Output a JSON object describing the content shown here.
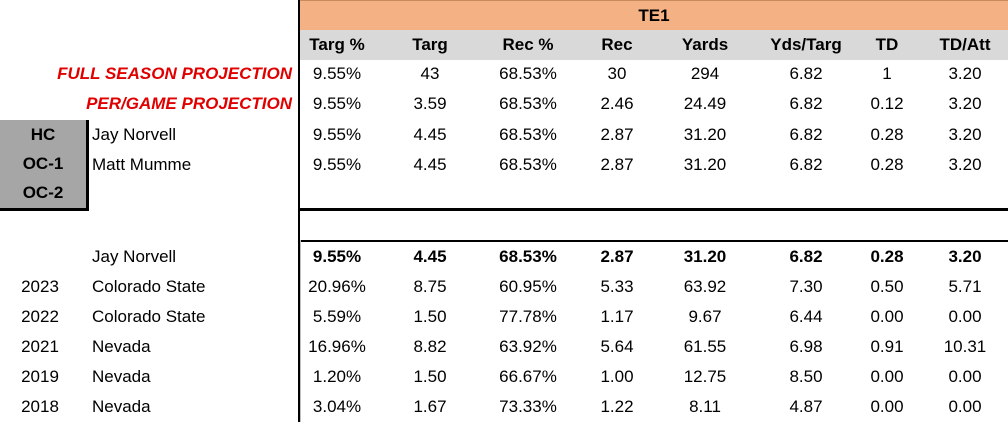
{
  "header": {
    "group_title": "TE1"
  },
  "columns": [
    "Targ %",
    "Targ",
    "Rec %",
    "Rec",
    "Yards",
    "Yds/Targ",
    "TD",
    "TD/Att"
  ],
  "projections": [
    {
      "label": "FULL SEASON PROJECTION",
      "values": [
        "9.55%",
        "43",
        "68.53%",
        "30",
        "294",
        "6.82",
        "1",
        "3.20"
      ]
    },
    {
      "label": "PER/GAME PROJECTION",
      "values": [
        "9.55%",
        "3.59",
        "68.53%",
        "2.46",
        "24.49",
        "6.82",
        "0.12",
        "3.20"
      ]
    }
  ],
  "coaches": {
    "tags": [
      "HC",
      "OC-1",
      "OC-2"
    ],
    "rows": [
      {
        "name": "Jay Norvell",
        "values": [
          "9.55%",
          "4.45",
          "68.53%",
          "2.87",
          "31.20",
          "6.82",
          "0.28",
          "3.20"
        ]
      },
      {
        "name": "Matt Mumme",
        "values": [
          "9.55%",
          "4.45",
          "68.53%",
          "2.87",
          "31.20",
          "6.82",
          "0.28",
          "3.20"
        ]
      }
    ]
  },
  "history": {
    "summary": {
      "name": "Jay Norvell",
      "values": [
        "9.55%",
        "4.45",
        "68.53%",
        "2.87",
        "31.20",
        "6.82",
        "0.28",
        "3.20"
      ]
    },
    "rows": [
      {
        "year": "2023",
        "school": "Colorado State",
        "values": [
          "20.96%",
          "8.75",
          "60.95%",
          "5.33",
          "63.92",
          "7.30",
          "0.50",
          "5.71"
        ]
      },
      {
        "year": "2022",
        "school": "Colorado State",
        "values": [
          "5.59%",
          "1.50",
          "77.78%",
          "1.17",
          "9.67",
          "6.44",
          "0.00",
          "0.00"
        ]
      },
      {
        "year": "2021",
        "school": "Nevada",
        "values": [
          "16.96%",
          "8.82",
          "63.92%",
          "5.64",
          "61.55",
          "6.98",
          "0.91",
          "10.31"
        ]
      },
      {
        "year": "2019",
        "school": "Nevada",
        "values": [
          "1.20%",
          "1.50",
          "66.67%",
          "1.00",
          "12.75",
          "8.50",
          "0.00",
          "0.00"
        ]
      },
      {
        "year": "2018",
        "school": "Nevada",
        "values": [
          "3.04%",
          "1.67",
          "73.33%",
          "1.22",
          "8.11",
          "4.87",
          "0.00",
          "0.00"
        ]
      }
    ]
  }
}
